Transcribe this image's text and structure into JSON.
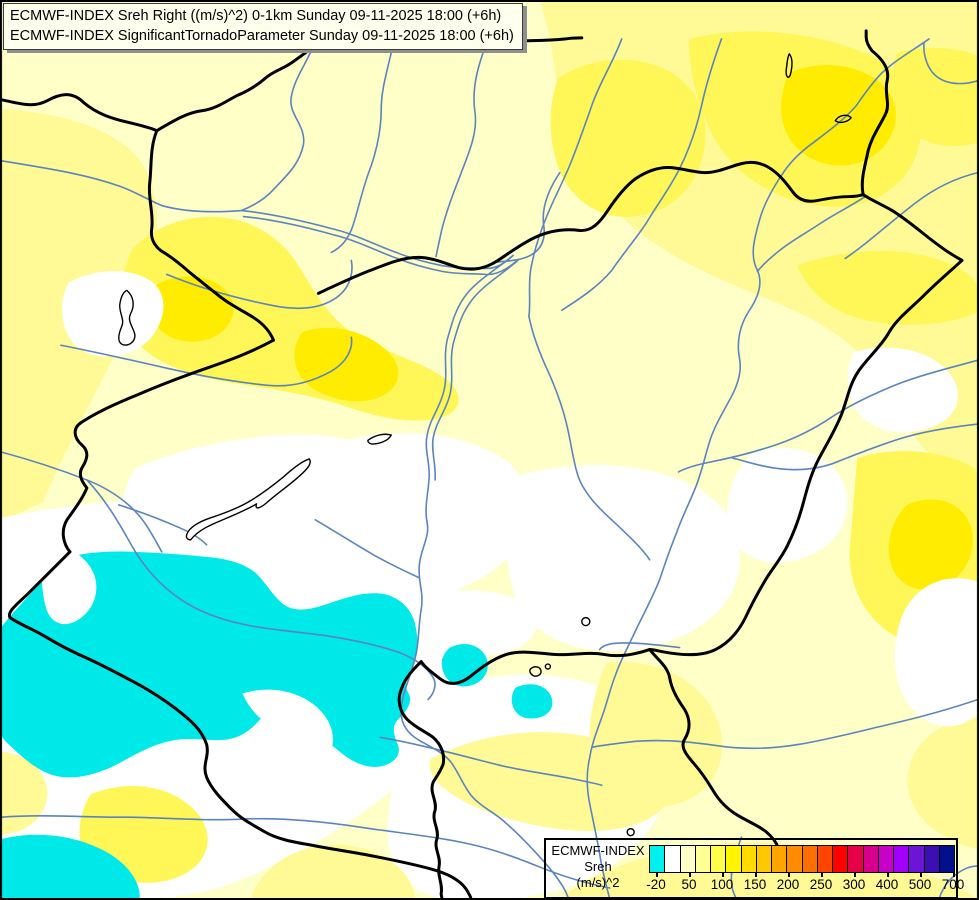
{
  "title_box": {
    "line1": "ECMWF-INDEX Sreh Right ((m/s)^2) 0-1km Sunday 09-11-2025 18:00 (+6h)",
    "line2": "ECMWF-INDEX SignificantTornadoParameter Sunday 09-11-2025 18:00 (+6h)"
  },
  "legend": {
    "label_lines": [
      "ECMWF-INDEX",
      "Sreh",
      "(m/s)^2"
    ],
    "tick_labels": [
      "-20",
      "50",
      "100",
      "150",
      "200",
      "250",
      "300",
      "400",
      "500",
      "700"
    ],
    "colors": [
      "#00F0F0",
      "#FFFFFF",
      "#FFFFC8",
      "#FFFF96",
      "#FFFF4B",
      "#FFF500",
      "#FFDC00",
      "#FFC800",
      "#FFA500",
      "#FF8C00",
      "#FF6E00",
      "#FF4600",
      "#FF0000",
      "#E60046",
      "#D7008C",
      "#C800C8",
      "#A000FA",
      "#6E14D7",
      "#3C0EB4",
      "#000F8C"
    ]
  },
  "map": {
    "palette": {
      "base": "#FFFFC8",
      "pale_yellow": "#FFFA96",
      "yellow": "#FFF657",
      "deep_yellow": "#FFEC00",
      "white_region": "#FFFFFF",
      "cyan_region": "#00E9E9",
      "river": "#5B84BE",
      "border": "#000000",
      "lake_outline": "#000000"
    }
  }
}
